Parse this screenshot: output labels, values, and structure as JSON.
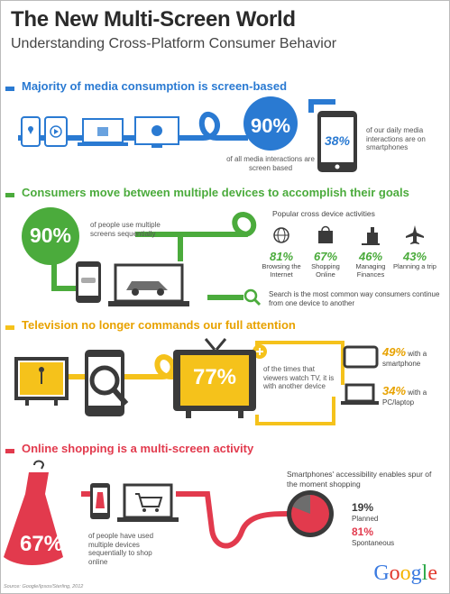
{
  "header": {
    "title": "The New Multi-Screen World",
    "subtitle": "Understanding Cross-Platform Consumer Behavior"
  },
  "colors": {
    "blue": "#2a7ad2",
    "green": "#4bab3c",
    "yellow": "#f5c21b",
    "red": "#e23a4d",
    "dark": "#3a3a3a",
    "gray": "#6d6d6d"
  },
  "section1": {
    "heading": "Majority of media consumption is screen-based",
    "big_stat": "90%",
    "big_caption": "of all media interactions are screen based",
    "phone_stat": "38%",
    "phone_caption": "of our daily media interactions are on smartphones",
    "icons": [
      "map-pin-icon",
      "play-icon",
      "laptop-icon",
      "tv-icon"
    ]
  },
  "section2": {
    "heading": "Consumers move between multiple devices to accomplish their goals",
    "big_stat": "90%",
    "big_caption": "of people use multiple screens sequentially",
    "activities_title": "Popular cross device activities",
    "activities": [
      {
        "icon": "globe-icon",
        "pct": "81%",
        "label": "Browsing the Internet"
      },
      {
        "icon": "shopping-bag-icon",
        "pct": "67%",
        "label": "Shopping Online"
      },
      {
        "icon": "bank-icon",
        "pct": "46%",
        "label": "Managing Finances"
      },
      {
        "icon": "airplane-icon",
        "pct": "43%",
        "label": "Planning a trip"
      }
    ],
    "search_note": "Search is the most common way consumers continue from one device to another"
  },
  "section3": {
    "heading": "Television no longer commands our full attention",
    "tv_stat": "77%",
    "tv_caption": "of the times that viewers watch TV, it is with another device",
    "smartphone_pct": "49%",
    "smartphone_label": "with a smartphone",
    "pc_pct": "34%",
    "pc_label": "with a PC/laptop"
  },
  "section4": {
    "heading": "Online shopping is a multi-screen activity",
    "dress_stat": "67%",
    "caption": "of people have used multiple devices sequentially to shop online",
    "spur_note": "Smartphones' accessibility enables spur of the moment shopping",
    "planned_pct": "19%",
    "planned_label": "Planned",
    "spont_pct": "81%",
    "spont_label": "Spontaneous",
    "planned_fraction": 0.19
  },
  "footer": {
    "brand": "Google",
    "source": "Source: Google/Ipsos/Sterling, 2012"
  }
}
